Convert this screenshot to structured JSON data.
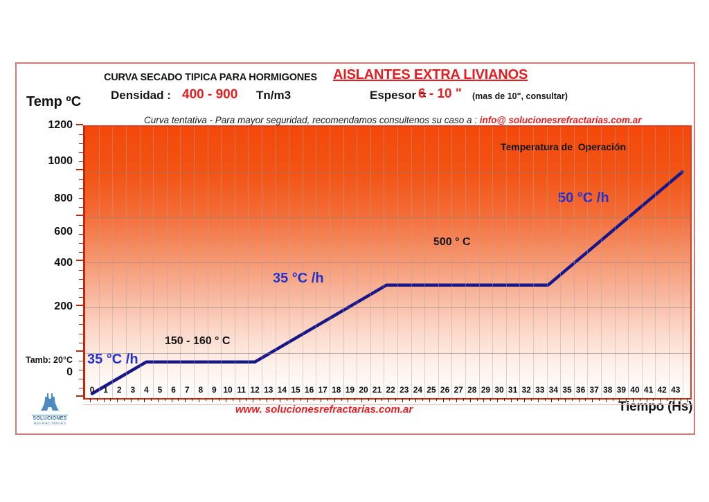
{
  "header": {
    "title_black": "CURVA SECADO TIPICA PARA HORMIGONES",
    "title_red": "AISLANTES EXTRA LIVIANOS",
    "density_label": "Densidad :",
    "density_value": "400 - 900",
    "density_unit": "Tn/m3",
    "thickness_label": "Espesor =",
    "thickness_value": "6 - 10 \"",
    "thickness_note": "(mas de 10\", consultar)",
    "tentative_note": "Curva tentativa - Para mayor seguridad, recomendamos consultenos su caso a : ",
    "tentative_email": "info@ solucionesrefractarias.com.ar"
  },
  "axes": {
    "y_title": "Temp ºC",
    "x_title": "Tiempo (Hs)",
    "ambient_label": "Tamb: 20°C"
  },
  "footer": {
    "website": "www. solucionesrefractarias.com.ar",
    "logo_line1": "SOLUCIONES",
    "logo_line2": "REFRACTARIAS"
  },
  "colors": {
    "accent_red": "#e41e20",
    "curve_navy": "#17178a",
    "rate_blue": "#2130cc",
    "gradient_top_orange": "#f3490b",
    "page_border": "#d07a7a",
    "plot_border": "#e23b1d",
    "logo_blue": "#4d8ac0"
  },
  "chart_data": {
    "type": "line",
    "title": "Curva secado tipica para hormigones aislantes extra livianos",
    "xlabel": "Tiempo (Hs)",
    "ylabel": "Temp ºC",
    "xlim": [
      0,
      44
    ],
    "ylim": [
      0,
      1200
    ],
    "grid": true,
    "x_ticks": [
      0,
      1,
      2,
      3,
      4,
      5,
      6,
      7,
      8,
      9,
      10,
      11,
      12,
      13,
      14,
      15,
      16,
      17,
      18,
      19,
      20,
      21,
      22,
      23,
      24,
      25,
      26,
      27,
      28,
      29,
      30,
      31,
      32,
      33,
      34,
      35,
      36,
      37,
      38,
      39,
      40,
      41,
      42,
      43
    ],
    "y_ticks": [
      0,
      200,
      400,
      600,
      800,
      1000,
      1200
    ],
    "series": [
      {
        "name": "curva de secado",
        "color": "#17178a",
        "points": [
          [
            0,
            20
          ],
          [
            4,
            160
          ],
          [
            12,
            160
          ],
          [
            21.7,
            500
          ],
          [
            33.6,
            500
          ],
          [
            43.5,
            1000
          ]
        ]
      }
    ],
    "annotations": [
      {
        "text": "35 °C /h",
        "type": "rate"
      },
      {
        "text": "150 - 160 ° C",
        "type": "hold"
      },
      {
        "text": "35 °C /h",
        "type": "rate"
      },
      {
        "text": "500 ° C",
        "type": "hold"
      },
      {
        "text": "50 °C /h",
        "type": "rate"
      },
      {
        "text": "Temperatura de  Operación",
        "type": "note"
      }
    ],
    "ambient_start_temp": 20
  }
}
